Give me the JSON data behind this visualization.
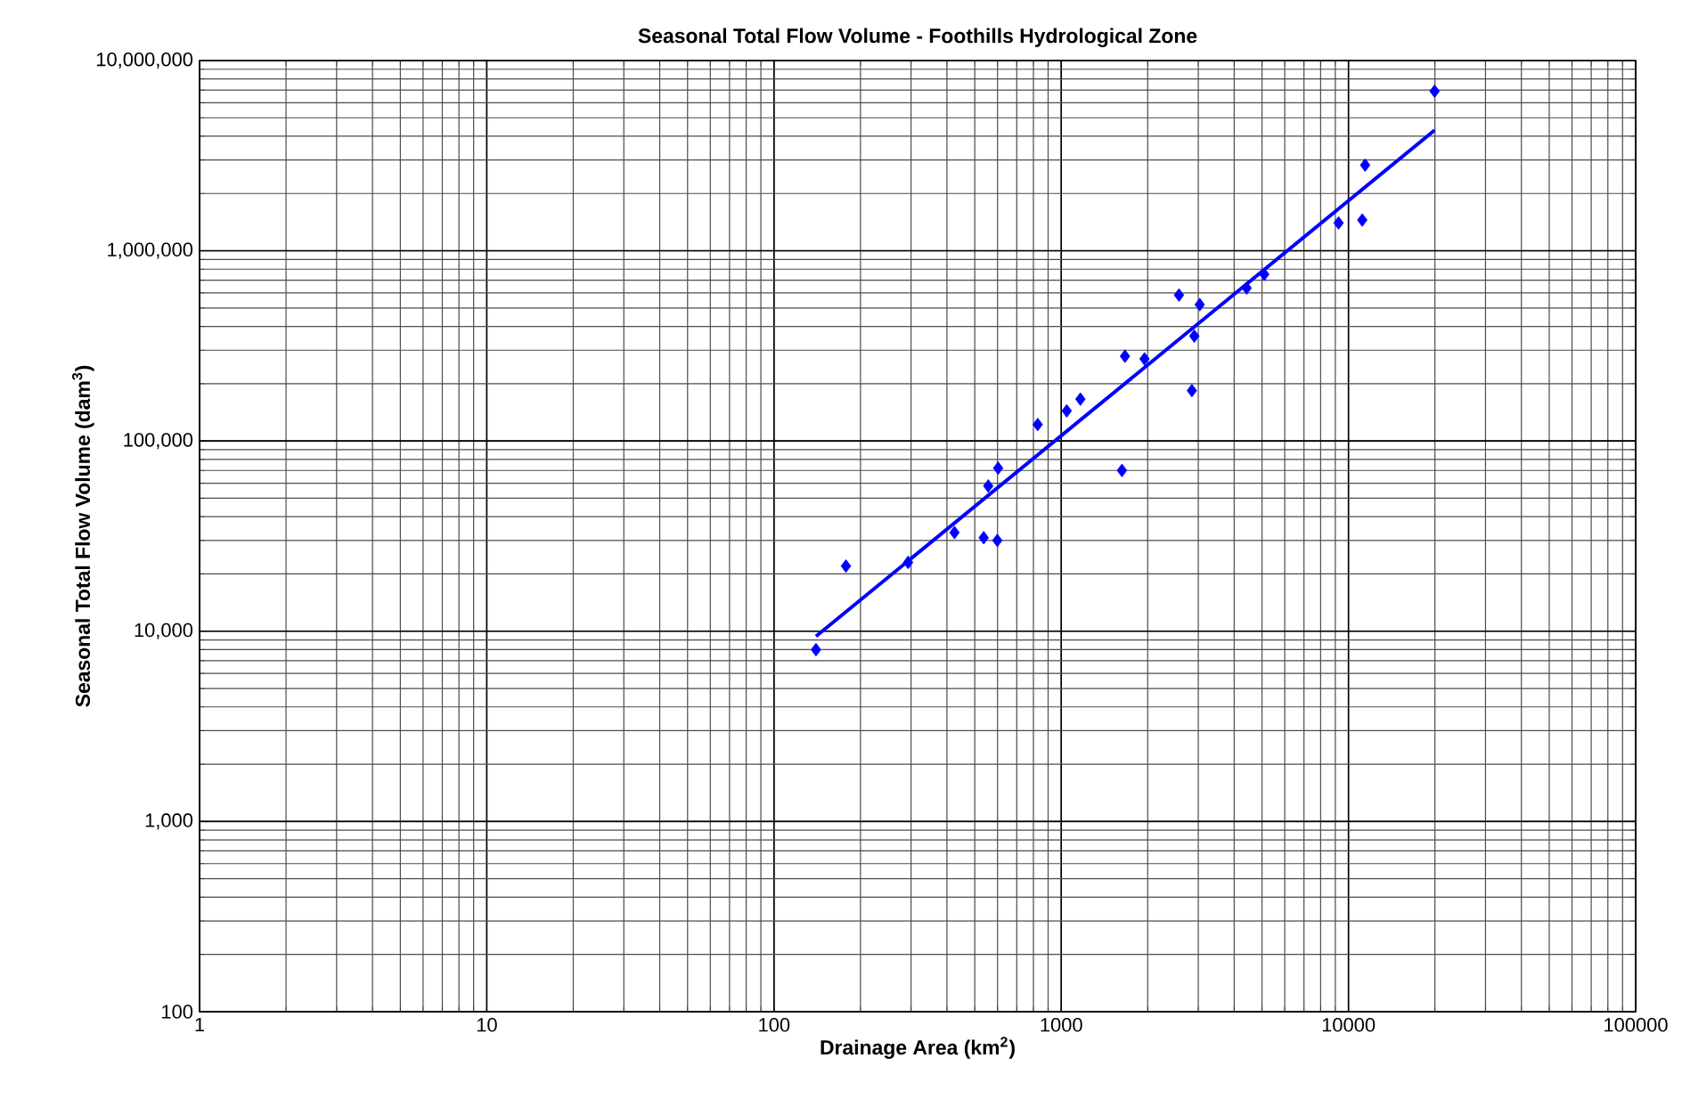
{
  "chart_data": {
    "type": "scatter",
    "title": "Seasonal Total Flow Volume  - Foothills Hydrological Zone",
    "xlabel": "Drainage Area (km$^{2}$)",
    "ylabel": "Seasonal Total Flow Volume (dam$^{3}$)",
    "log": "xy",
    "grid": true,
    "xlim": [
      1,
      100000
    ],
    "xticks": [
      1,
      10,
      100,
      1000,
      10000,
      100000
    ],
    "ylim": [
      100,
      10000000
    ],
    "yticks": [
      {
        "value": 100,
        "label": "100"
      },
      {
        "value": 1000,
        "label": "1,000"
      },
      {
        "value": 10000,
        "label": "10,000"
      },
      {
        "value": 100000,
        "label": "100,000"
      },
      {
        "value": 1000000,
        "label": "1,000,000"
      },
      {
        "value": 10000000,
        "label": "10,000,000"
      }
    ],
    "series": [
      {
        "marker": "diamond",
        "color": "#0000ff",
        "x": [
          140,
          178,
          293,
          425,
          537,
          599,
          557,
          603,
          828,
          1045,
          1166,
          1627,
          1667,
          1950,
          2850,
          2906,
          2570,
          3035,
          4420,
          5090,
          9240,
          11170,
          11430,
          19950
        ],
        "values": [
          8000,
          22000,
          23000,
          33000,
          31000,
          30000,
          58000,
          72000,
          122000,
          144000,
          166000,
          70000,
          279000,
          270000,
          184000,
          356000,
          585000,
          521000,
          637000,
          752000,
          1400000,
          1450000,
          2820000,
          6900000
        ]
      },
      {
        "type": "line",
        "marker": "none",
        "color": "#0000ff",
        "x": [
          140,
          19950
        ],
        "values": [
          9400,
          4300000
        ]
      }
    ]
  }
}
